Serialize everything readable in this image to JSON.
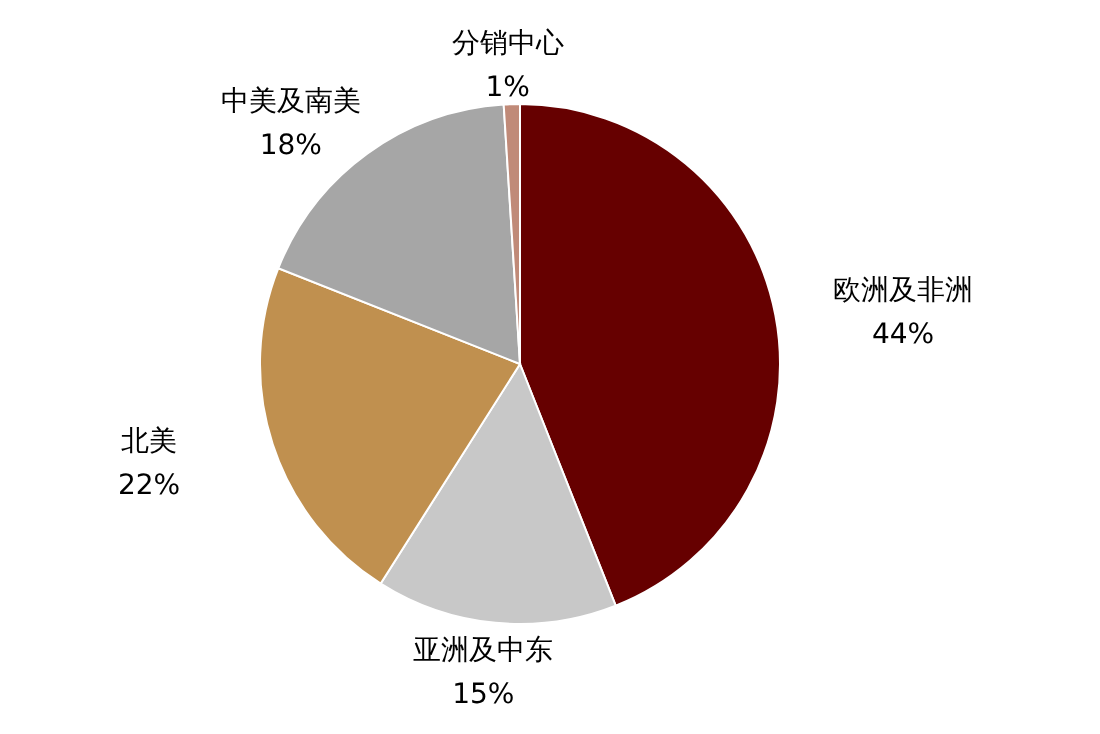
{
  "chart_data": {
    "type": "pie",
    "categories": [
      "欧洲及非洲",
      "亚洲及中东",
      "北美",
      "中美及南美",
      "分销中心"
    ],
    "values": [
      44,
      15,
      22,
      18,
      1
    ],
    "value_labels": [
      "44%",
      "15%",
      "22%",
      "18%",
      "1%"
    ],
    "colors": [
      "#660000",
      "#c8c8c8",
      "#c0904f",
      "#a6a6a6",
      "#c08a78"
    ]
  }
}
